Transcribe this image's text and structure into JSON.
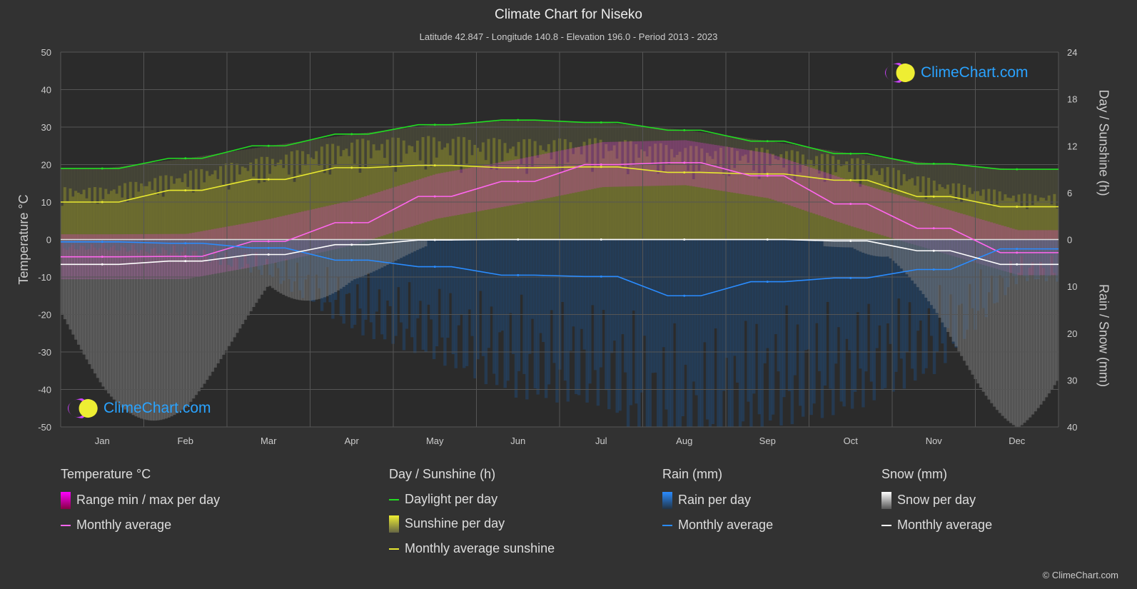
{
  "header": {
    "title": "Climate Chart for Niseko",
    "subtitle": "Latitude 42.847 - Longitude 140.8 - Elevation 196.0 - Period 2013 - 2023"
  },
  "chart_data": {
    "type": "line",
    "title": "Climate Chart for Niseko",
    "categories": [
      "Jan",
      "Feb",
      "Mar",
      "Apr",
      "May",
      "Jun",
      "Jul",
      "Aug",
      "Sep",
      "Oct",
      "Nov",
      "Dec"
    ],
    "y_left": {
      "label": "Temperature °C",
      "range": [
        -50,
        50
      ],
      "ticks": [
        "50",
        "40",
        "30",
        "20",
        "10",
        "0",
        "-10",
        "-20",
        "-30",
        "-40",
        "-50"
      ]
    },
    "y_right_top": {
      "label": "Day / Sunshine (h)",
      "range": [
        0,
        24
      ],
      "ticks": [
        "24",
        "18",
        "12",
        "6",
        "0"
      ]
    },
    "y_right_bottom": {
      "label": "Rain / Snow (mm)",
      "range": [
        0,
        40
      ],
      "ticks": [
        "0",
        "10",
        "20",
        "30",
        "40"
      ]
    },
    "grid": true,
    "series": [
      {
        "name": "Temperature monthly average",
        "unit": "°C",
        "color": "#ff66ee",
        "values": [
          -4.6,
          -4.5,
          -0.5,
          4.5,
          11.5,
          15.5,
          20,
          20.5,
          17,
          9.5,
          3,
          -3.5
        ]
      },
      {
        "name": "Daylight per day",
        "unit": "h",
        "color": "#22dd22",
        "values": [
          9.1,
          10.4,
          12.0,
          13.5,
          14.7,
          15.3,
          15.0,
          14.0,
          12.6,
          11.0,
          9.7,
          9.0
        ]
      },
      {
        "name": "Monthly average sunshine",
        "unit": "h",
        "color": "#e8e830",
        "values": [
          4.8,
          6.3,
          7.7,
          9.2,
          9.5,
          9.2,
          9.3,
          8.6,
          8.4,
          7.6,
          5.5,
          4.2
        ]
      },
      {
        "name": "Rain monthly average",
        "unit": "mm",
        "color": "#2a8cff",
        "values": [
          0.5,
          0.8,
          1.8,
          4.4,
          5.8,
          7.6,
          7.9,
          12.0,
          9.0,
          8.2,
          6.4,
          2.0
        ]
      },
      {
        "name": "Snow monthly average",
        "unit": "mm",
        "color": "#ffffff",
        "values": [
          5.3,
          4.6,
          3.2,
          1.1,
          0.1,
          0,
          0,
          0,
          0,
          0.3,
          2.4,
          5.3
        ]
      }
    ]
  },
  "legend": {
    "temp": {
      "title": "Temperature °C",
      "range": "Range min / max per day",
      "avg": "Monthly average"
    },
    "sun": {
      "title": "Day / Sunshine (h)",
      "daylight": "Daylight per day",
      "sunshine": "Sunshine per day",
      "avg": "Monthly average sunshine"
    },
    "rain": {
      "title": "Rain (mm)",
      "per_day": "Rain per day",
      "avg": "Monthly average"
    },
    "snow": {
      "title": "Snow (mm)",
      "per_day": "Snow per day",
      "avg": "Monthly average"
    }
  },
  "logo": "ClimeChart.com",
  "copyright": "© ClimeChart.com"
}
